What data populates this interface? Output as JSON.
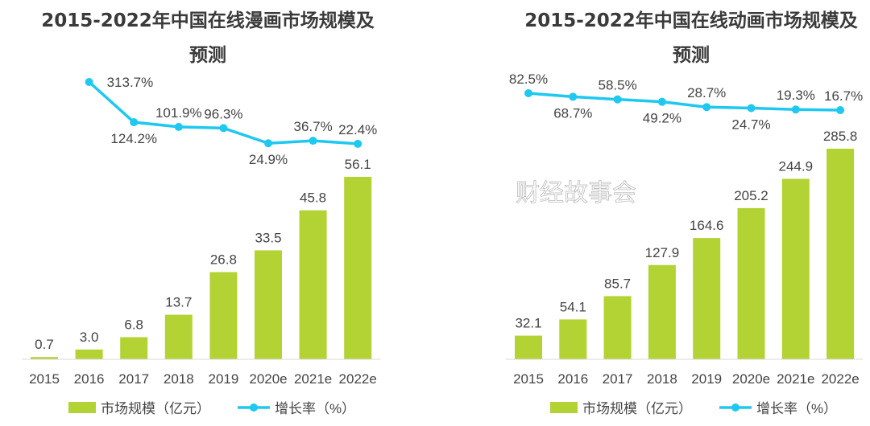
{
  "chart_data": [
    {
      "type": "bar+line",
      "title_lines": [
        "2015-2022年中国在线漫画市场规模及",
        "预测"
      ],
      "categories": [
        "2015",
        "2016",
        "2017",
        "2018",
        "2019",
        "2020e",
        "2021e",
        "2022e"
      ],
      "series": [
        {
          "name": "市场规模（亿元）",
          "type": "bar",
          "values": [
            0.7,
            3.0,
            6.8,
            13.7,
            26.8,
            33.5,
            45.8,
            56.1
          ],
          "labels": [
            "0.7",
            "3.0",
            "6.8",
            "13.7",
            "26.8",
            "33.5",
            "45.8",
            "56.1"
          ],
          "color": "#b3d234"
        },
        {
          "name": "增长率（%）",
          "type": "line",
          "values": [
            null,
            313.7,
            124.2,
            101.9,
            96.3,
            24.9,
            36.7,
            22.4
          ],
          "labels": [
            "",
            "313.7%",
            "124.2%",
            "101.9%",
            "96.3%",
            "24.9%",
            "36.7%",
            "22.4%"
          ],
          "color": "#1ec8f0"
        }
      ],
      "legend": [
        "市场规模（亿元）",
        "增长率（%）"
      ],
      "legend_placement": "bottom",
      "grid": false
    },
    {
      "type": "bar+line",
      "title_lines": [
        "2015-2022年中国在线动画市场规模及",
        "预测"
      ],
      "categories": [
        "2015",
        "2016",
        "2017",
        "2018",
        "2019",
        "2020e",
        "2021e",
        "2022e"
      ],
      "series": [
        {
          "name": "市场规模（亿元）",
          "type": "bar",
          "values": [
            32.1,
            54.1,
            85.7,
            127.9,
            164.6,
            205.2,
            244.9,
            285.8
          ],
          "labels": [
            "32.1",
            "54.1",
            "85.7",
            "127.9",
            "164.6",
            "205.2",
            "244.9",
            "285.8"
          ],
          "color": "#b3d234"
        },
        {
          "name": "增长率（%）",
          "type": "line",
          "values": [
            82.5,
            68.7,
            58.5,
            49.2,
            28.7,
            24.7,
            19.3,
            16.7
          ],
          "labels": [
            "82.5%",
            "68.7%",
            "58.5%",
            "49.2%",
            "28.7%",
            "24.7%",
            "19.3%",
            "16.7%"
          ],
          "color": "#1ec8f0"
        }
      ],
      "legend": [
        "市场规模（亿元）",
        "增长率（%）"
      ],
      "legend_placement": "bottom",
      "grid": false
    }
  ],
  "watermark": "财经故事会"
}
